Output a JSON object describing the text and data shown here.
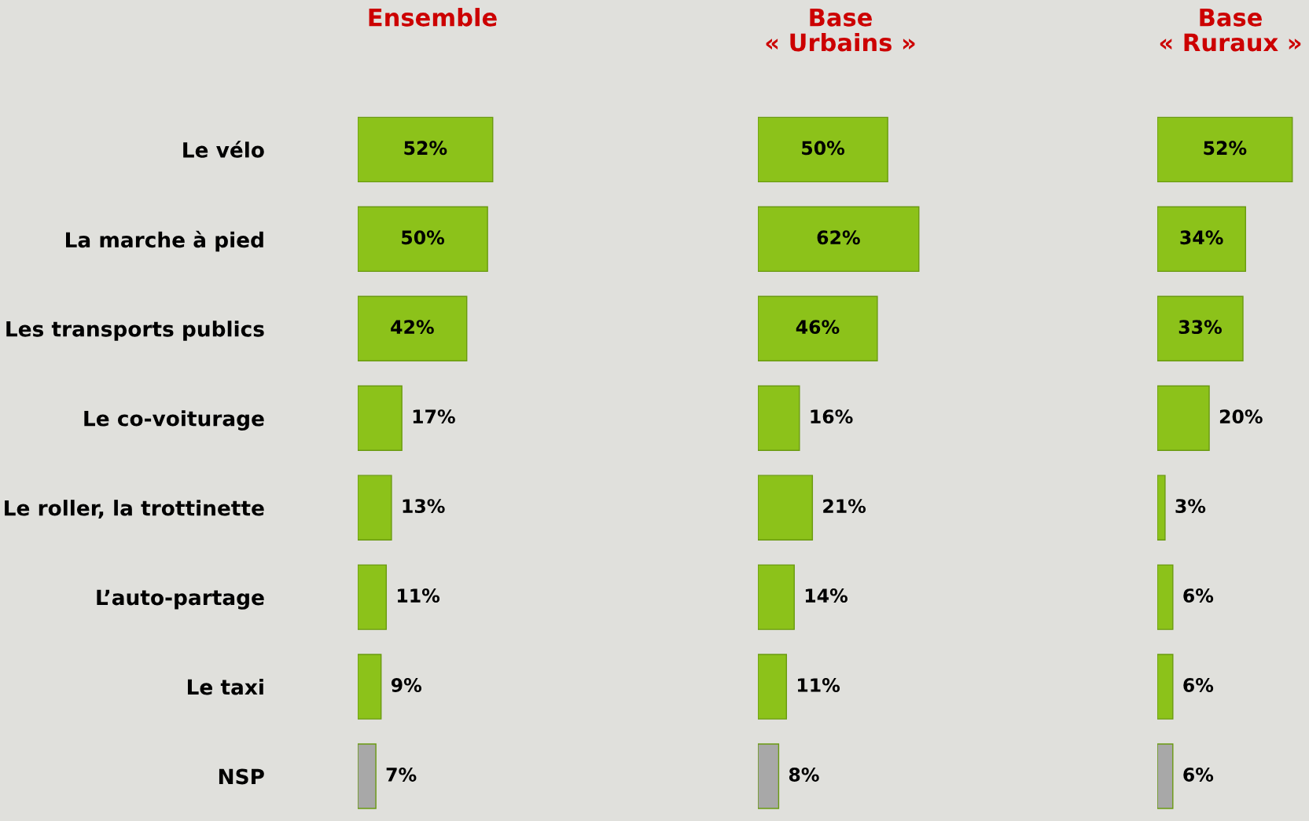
{
  "chart_data": [
    {
      "type": "bar",
      "orientation": "horizontal",
      "title": "Ensemble",
      "categories": [
        "Le vélo",
        "La marche à pied",
        "Les transports publics",
        "Le co-voiturage",
        "Le roller, la trottinette",
        "L’auto-partage",
        "Le taxi",
        "NSP"
      ],
      "values": [
        52,
        50,
        42,
        17,
        13,
        11,
        9,
        7
      ],
      "value_labels": [
        "52%",
        "50%",
        "42%",
        "17%",
        "13%",
        "11%",
        "9%",
        "7%"
      ],
      "colors": [
        "#8cc21a",
        "#8cc21a",
        "#8cc21a",
        "#8cc21a",
        "#8cc21a",
        "#8cc21a",
        "#8cc21a",
        "#a8a8a8"
      ]
    },
    {
      "type": "bar",
      "orientation": "horizontal",
      "title": "Base\n« Urbains »",
      "categories": [
        null,
        null,
        null,
        null,
        null,
        null,
        null,
        null
      ],
      "values": [
        50,
        62,
        46,
        16,
        21,
        14,
        11,
        8
      ],
      "value_labels": [
        "50%",
        "62%",
        "46%",
        "16%",
        "21%",
        "14%",
        "11%",
        "8%"
      ],
      "colors": [
        "#8cc21a",
        "#8cc21a",
        "#8cc21a",
        "#8cc21a",
        "#8cc21a",
        "#8cc21a",
        "#8cc21a",
        "#a8a8a8"
      ]
    },
    {
      "type": "bar",
      "orientation": "horizontal",
      "title": "Base\n« Ruraux »",
      "categories": [
        null,
        null,
        null,
        null,
        null,
        null,
        null,
        null
      ],
      "values": [
        52,
        34,
        33,
        20,
        3,
        6,
        6,
        6
      ],
      "value_labels": [
        "52%",
        "34%",
        "33%",
        "20%",
        "3%",
        "6%",
        "6%",
        "6%"
      ],
      "colors": [
        "#8cc21a",
        "#8cc21a",
        "#8cc21a",
        "#8cc21a",
        "#8cc21a",
        "#8cc21a",
        "#8cc21a",
        "#a8a8a8"
      ]
    }
  ]
}
